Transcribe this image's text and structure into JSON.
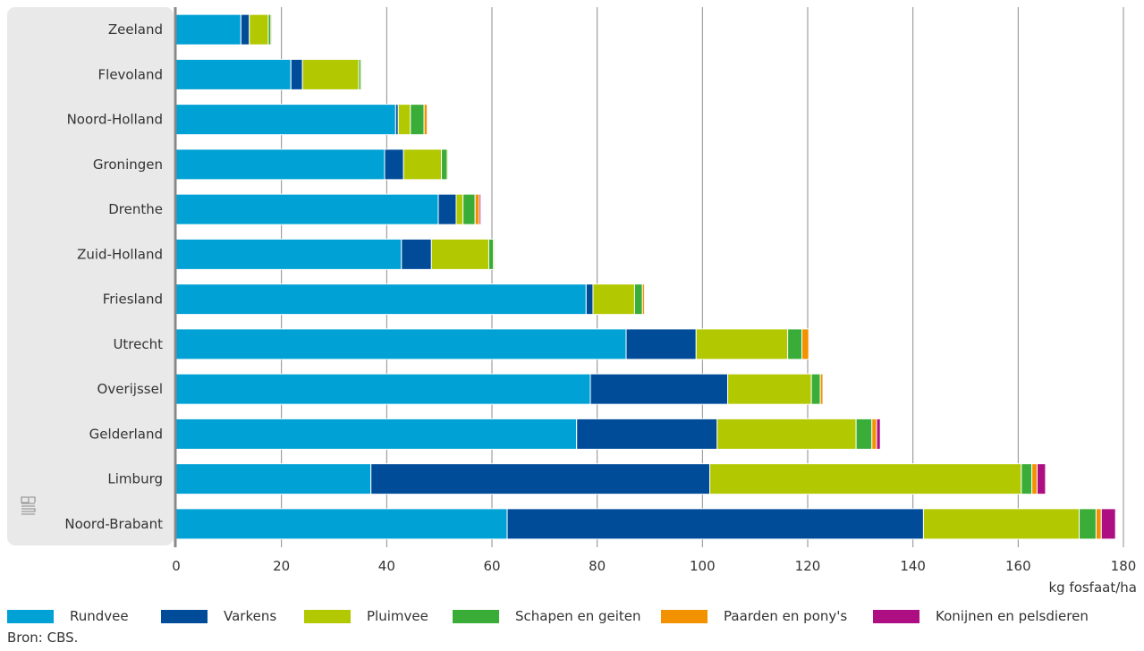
{
  "chart_data": {
    "type": "bar",
    "orientation": "horizontal",
    "stacked": true,
    "categories": [
      "Zeeland",
      "Flevoland",
      "Noord-Holland",
      "Groningen",
      "Drenthe",
      "Zuid-Holland",
      "Friesland",
      "Utrecht",
      "Overijssel",
      "Gelderland",
      "Limburg",
      "Noord-Brabant"
    ],
    "series": [
      {
        "name": "Rundvee",
        "color": "#00a1d4",
        "values": [
          12.3,
          21.8,
          41.7,
          39.6,
          49.8,
          42.8,
          77.9,
          85.5,
          78.7,
          76.1,
          37.0,
          62.9
        ]
      },
      {
        "name": "Varkens",
        "color": "#004c99",
        "values": [
          1.6,
          2.2,
          0.5,
          3.6,
          3.4,
          5.7,
          1.3,
          13.3,
          26.1,
          26.7,
          64.4,
          79.1
        ]
      },
      {
        "name": "Pluimvee",
        "color": "#b2c800",
        "values": [
          3.6,
          10.7,
          2.3,
          7.2,
          1.3,
          10.9,
          7.9,
          17.4,
          15.9,
          26.4,
          59.2,
          29.6
        ]
      },
      {
        "name": "Schapen en geiten",
        "color": "#3aac38",
        "values": [
          0.5,
          0.4,
          2.6,
          1.1,
          2.3,
          0.9,
          1.5,
          2.7,
          1.7,
          3.0,
          2.0,
          3.2
        ]
      },
      {
        "name": "Paarden en pony's",
        "color": "#f39200",
        "values": [
          0.2,
          0.2,
          0.6,
          0.2,
          0.8,
          0.2,
          0.4,
          1.3,
          0.5,
          0.9,
          1.0,
          1.0
        ]
      },
      {
        "name": "Konijnen en pelsdieren",
        "color": "#ad0e82",
        "values": [
          0,
          0,
          0,
          0,
          0.3,
          0,
          0,
          0,
          0,
          0.7,
          1.6,
          2.7
        ]
      }
    ],
    "xlim": [
      0,
      180
    ],
    "xticks": [
      0,
      20,
      40,
      60,
      80,
      100,
      120,
      140,
      160,
      180
    ],
    "xlabel": "kg fosfaat/ha",
    "grid": true,
    "legend_position": "bottom"
  },
  "source": "Bron: CBS.",
  "logo": "cbs-logo-icon"
}
